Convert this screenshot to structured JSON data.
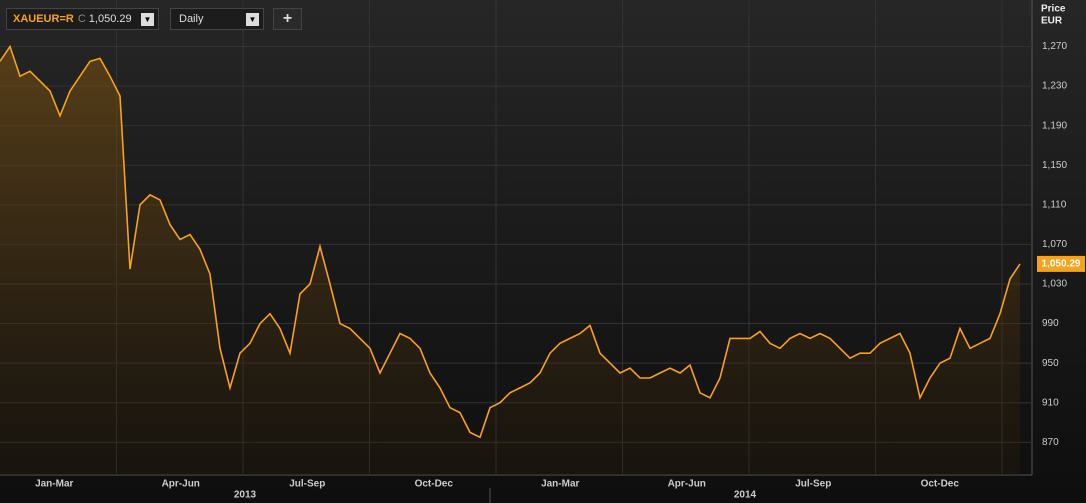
{
  "toolbar": {
    "ric": "XAUEUR=R",
    "close_prefix": "C",
    "close_value": "1,050.29",
    "interval": "Daily",
    "add_button": "+"
  },
  "chart_data": {
    "type": "line",
    "color": "#f7a21b",
    "grid": true,
    "axis_title": [
      "Price",
      "EUR"
    ],
    "x_labels": [
      "Jan-Mar",
      "Apr-Jun",
      "Jul-Sep",
      "Oct-Dec",
      "Jan-Mar",
      "Apr-Jun",
      "Jul-Sep",
      "Oct-Dec"
    ],
    "years": [
      "2013",
      "2014"
    ],
    "ylim": [
      842,
      1317
    ],
    "yticks": [
      870,
      910,
      950,
      990,
      {
        "value": 1030,
        "label": "1,030"
      },
      {
        "value": 1070,
        "label": "1,070"
      },
      {
        "value": 1110,
        "label": "1,110"
      },
      {
        "value": 1150,
        "label": "1,150"
      },
      {
        "value": 1190,
        "label": "1,190"
      },
      {
        "value": 1230,
        "label": "1,230"
      },
      {
        "value": 1270,
        "label": "1,270"
      }
    ],
    "last_value_label": "1,050.29",
    "values": [
      1255,
      1270,
      1240,
      1245,
      1235,
      1225,
      1200,
      1225,
      1240,
      1255,
      1258,
      1240,
      1220,
      1045,
      1110,
      1120,
      1115,
      1090,
      1075,
      1080,
      1065,
      1040,
      965,
      925,
      960,
      970,
      990,
      1000,
      985,
      960,
      1020,
      1030,
      1068,
      1030,
      990,
      985,
      975,
      965,
      940,
      960,
      980,
      975,
      965,
      940,
      925,
      905,
      900,
      880,
      875,
      905,
      910,
      920,
      925,
      930,
      940,
      960,
      970,
      975,
      980,
      988,
      960,
      950,
      940,
      945,
      935,
      935,
      940,
      945,
      940,
      948,
      920,
      915,
      935,
      975,
      975,
      975,
      982,
      970,
      965,
      975,
      980,
      975,
      980,
      975,
      965,
      955,
      960,
      960,
      970,
      975,
      980,
      960,
      915,
      935,
      950,
      955,
      985,
      965,
      970,
      975,
      1000,
      1035,
      1050.29
    ]
  }
}
